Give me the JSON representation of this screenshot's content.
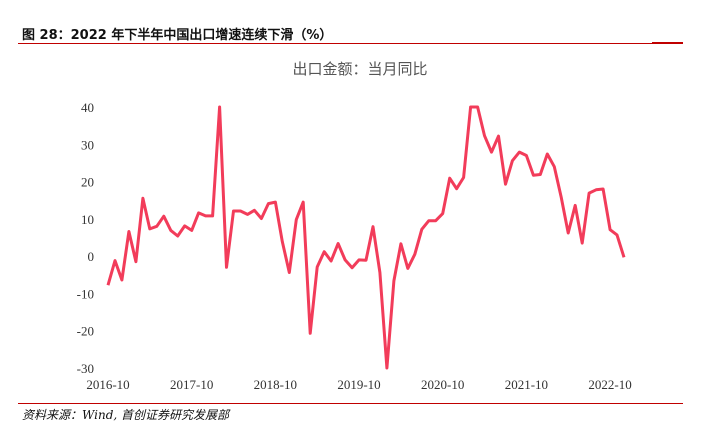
{
  "caption": "图 28：2022 年下半年中国出口增速连续下滑（%）",
  "source": "资料来源：Wind, 首创证券研究发展部",
  "chart_data": {
    "type": "line",
    "title": "出口金额：当月同比",
    "xlabel": "",
    "ylabel": "",
    "ylim": [
      -30,
      40
    ],
    "y_ticks": [
      40,
      30,
      20,
      10,
      0,
      -10,
      -20,
      -30
    ],
    "x_tick_labels": [
      "2016-10",
      "2017-10",
      "2018-10",
      "2019-10",
      "2020-10",
      "2021-10",
      "2022-10"
    ],
    "x_start": "2016-10",
    "line_color": "#f23c5a",
    "grid": false,
    "series": [
      {
        "values": [
          -7.8,
          -1.2,
          -6.4,
          6.6,
          -1.5,
          15.5,
          7.3,
          8.0,
          10.7,
          6.9,
          5.4,
          8.1,
          6.9,
          11.6,
          10.8,
          10.8,
          40.0,
          -3.0,
          12.1,
          12.1,
          11.2,
          12.3,
          10.1,
          14.1,
          14.5,
          3.9,
          -4.4,
          9.8,
          14.5,
          -20.7,
          -2.9,
          1.2,
          -1.3,
          3.4,
          -1.0,
          -3.1,
          -1.0,
          -1.1,
          7.9,
          -4.4,
          -30.0,
          -6.6,
          3.3,
          -3.3,
          0.5,
          7.2,
          9.5,
          9.5,
          11.4,
          20.9,
          18.1,
          21.1,
          40.0,
          40.0,
          32.3,
          27.9,
          32.2,
          19.3,
          25.6,
          27.9,
          27.0,
          21.7,
          21.9,
          27.4,
          24.0,
          15.8,
          6.2,
          13.6,
          3.5,
          16.9,
          17.8,
          18.0,
          7.1,
          5.7,
          -0.3
        ]
      }
    ]
  }
}
